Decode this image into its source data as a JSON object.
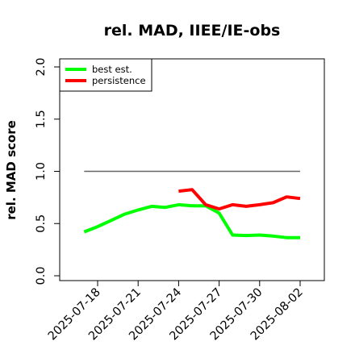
{
  "chart_data": {
    "type": "line",
    "title": "rel. MAD, IIEE/IE-obs",
    "xlabel": "",
    "ylabel": "rel. MAD score",
    "ylim": [
      0.0,
      2.0
    ],
    "yticks": [
      "0.0",
      "0.5",
      "1.0",
      "1.5",
      "2.0"
    ],
    "xlim": [
      "2025-07-16",
      "2025-08-03"
    ],
    "xticks": [
      "2025-07-18",
      "2025-07-21",
      "2025-07-24",
      "2025-07-27",
      "2025-07-30",
      "2025-08-02"
    ],
    "grid": false,
    "legend_position": "top-left",
    "reference_line": {
      "y": 1.0,
      "x_start": "2025-07-17",
      "x_end": "2025-08-02",
      "color": "#666666"
    },
    "series": [
      {
        "name": "best est.",
        "color": "#00ff00",
        "points": [
          [
            "2025-07-17",
            0.42
          ],
          [
            "2025-07-18",
            0.47
          ],
          [
            "2025-07-19",
            0.53
          ],
          [
            "2025-07-20",
            0.59
          ],
          [
            "2025-07-21",
            0.63
          ],
          [
            "2025-07-22",
            0.665
          ],
          [
            "2025-07-23",
            0.655
          ],
          [
            "2025-07-24",
            0.68
          ],
          [
            "2025-07-25",
            0.67
          ],
          [
            "2025-07-26",
            0.67
          ],
          [
            "2025-07-27",
            0.6
          ],
          [
            "2025-07-28",
            0.39
          ],
          [
            "2025-07-29",
            0.385
          ],
          [
            "2025-07-30",
            0.39
          ],
          [
            "2025-07-31",
            0.38
          ],
          [
            "2025-08-01",
            0.365
          ],
          [
            "2025-08-02",
            0.365
          ]
        ]
      },
      {
        "name": "persistence",
        "color": "#ff0000",
        "points": [
          [
            "2025-07-24",
            0.81
          ],
          [
            "2025-07-25",
            0.825
          ],
          [
            "2025-07-26",
            0.68
          ],
          [
            "2025-07-27",
            0.64
          ],
          [
            "2025-07-28",
            0.68
          ],
          [
            "2025-07-29",
            0.665
          ],
          [
            "2025-07-30",
            0.68
          ],
          [
            "2025-07-31",
            0.7
          ],
          [
            "2025-08-01",
            0.755
          ],
          [
            "2025-08-02",
            0.74
          ]
        ]
      }
    ]
  }
}
